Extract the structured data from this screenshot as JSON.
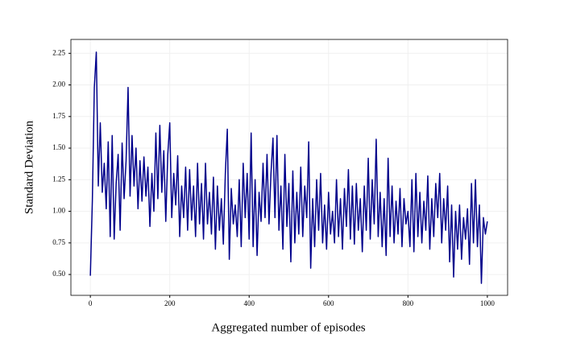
{
  "chart_data": {
    "type": "line",
    "x_label": "Aggregated number of episodes",
    "y_label": "Standard Deviation",
    "x": [
      0,
      5,
      10,
      15,
      20,
      25,
      30,
      35,
      40,
      45,
      50,
      55,
      60,
      65,
      70,
      75,
      80,
      85,
      90,
      95,
      100,
      105,
      110,
      115,
      120,
      125,
      130,
      135,
      140,
      145,
      150,
      155,
      160,
      165,
      170,
      175,
      180,
      185,
      190,
      195,
      200,
      205,
      210,
      215,
      220,
      225,
      230,
      235,
      240,
      245,
      250,
      255,
      260,
      265,
      270,
      275,
      280,
      285,
      290,
      295,
      300,
      305,
      310,
      315,
      320,
      325,
      330,
      335,
      340,
      345,
      350,
      355,
      360,
      365,
      370,
      375,
      380,
      385,
      390,
      395,
      400,
      405,
      410,
      415,
      420,
      425,
      430,
      435,
      440,
      445,
      450,
      455,
      460,
      465,
      470,
      475,
      480,
      485,
      490,
      495,
      500,
      505,
      510,
      515,
      520,
      525,
      530,
      535,
      540,
      545,
      550,
      555,
      560,
      565,
      570,
      575,
      580,
      585,
      590,
      595,
      600,
      605,
      610,
      615,
      620,
      625,
      630,
      635,
      640,
      645,
      650,
      655,
      660,
      665,
      670,
      675,
      680,
      685,
      690,
      695,
      700,
      705,
      710,
      715,
      720,
      725,
      730,
      735,
      740,
      745,
      750,
      755,
      760,
      765,
      770,
      775,
      780,
      785,
      790,
      795,
      800,
      805,
      810,
      815,
      820,
      825,
      830,
      835,
      840,
      845,
      850,
      855,
      860,
      865,
      870,
      875,
      880,
      885,
      890,
      895,
      900,
      905,
      910,
      915,
      920,
      925,
      930,
      935,
      940,
      945,
      950,
      955,
      960,
      965,
      970,
      975,
      980,
      985,
      990,
      995,
      1000
    ],
    "series": [
      {
        "color": "#00008b",
        "values": [
          0.49,
          1.08,
          1.98,
          2.26,
          1.2,
          1.7,
          1.15,
          1.38,
          1.02,
          1.55,
          0.8,
          1.6,
          0.78,
          1.22,
          1.45,
          0.85,
          1.54,
          1.1,
          1.4,
          1.98,
          1.12,
          1.6,
          1.2,
          1.5,
          1.02,
          1.4,
          1.08,
          1.43,
          1.12,
          1.35,
          0.88,
          1.3,
          1.0,
          1.62,
          1.1,
          1.68,
          1.15,
          1.48,
          0.92,
          1.45,
          1.7,
          0.95,
          1.3,
          1.05,
          1.44,
          0.8,
          1.2,
          0.95,
          1.35,
          0.85,
          1.33,
          0.93,
          1.2,
          0.8,
          1.38,
          0.9,
          1.22,
          0.78,
          1.38,
          0.9,
          1.15,
          0.82,
          1.27,
          0.7,
          1.2,
          0.85,
          1.1,
          0.74,
          1.3,
          1.65,
          0.62,
          1.18,
          0.9,
          1.05,
          0.8,
          1.25,
          0.72,
          1.38,
          0.95,
          1.3,
          0.78,
          1.62,
          0.72,
          1.25,
          0.65,
          1.15,
          0.92,
          1.38,
          0.95,
          1.45,
          0.9,
          1.3,
          1.58,
          0.95,
          1.6,
          0.85,
          1.2,
          0.7,
          1.45,
          0.88,
          1.22,
          0.6,
          1.32,
          0.75,
          1.15,
          0.82,
          1.35,
          0.8,
          1.2,
          0.95,
          1.55,
          0.55,
          1.1,
          0.72,
          1.25,
          0.85,
          1.3,
          0.75,
          1.05,
          0.7,
          1.15,
          0.82,
          1.0,
          0.75,
          1.25,
          0.8,
          1.1,
          0.7,
          1.18,
          0.88,
          1.33,
          0.78,
          1.2,
          0.74,
          1.22,
          0.85,
          1.1,
          0.68,
          1.2,
          0.85,
          1.42,
          0.78,
          1.25,
          0.9,
          1.57,
          0.8,
          1.15,
          0.72,
          1.1,
          0.65,
          1.42,
          0.8,
          1.2,
          0.75,
          1.08,
          0.82,
          1.18,
          0.72,
          1.1,
          0.9,
          1.0,
          0.72,
          1.25,
          0.68,
          1.3,
          0.8,
          1.15,
          0.75,
          1.08,
          0.85,
          1.28,
          0.7,
          1.1,
          0.8,
          1.22,
          0.95,
          1.3,
          0.75,
          1.1,
          0.85,
          1.2,
          0.6,
          1.05,
          0.48,
          1.0,
          0.7,
          1.05,
          0.62,
          0.95,
          0.78,
          1.02,
          0.58,
          1.22,
          0.75,
          1.25,
          0.72,
          1.05,
          0.43,
          0.95,
          0.82,
          0.92
        ]
      }
    ],
    "xlim": [
      -49,
      1051
    ],
    "ylim": [
      0.335,
      2.36
    ],
    "xticks": [
      0,
      200,
      400,
      600,
      800,
      1000
    ],
    "yticks": [
      {
        "value": 0.5,
        "label": "0.50"
      },
      0.75,
      {
        "value": 1,
        "label": "1.00"
      },
      1.25,
      {
        "value": 1.5,
        "label": "1.50"
      },
      1.75,
      {
        "value": 2,
        "label": "2.00"
      },
      2.25
    ],
    "grid": true
  }
}
